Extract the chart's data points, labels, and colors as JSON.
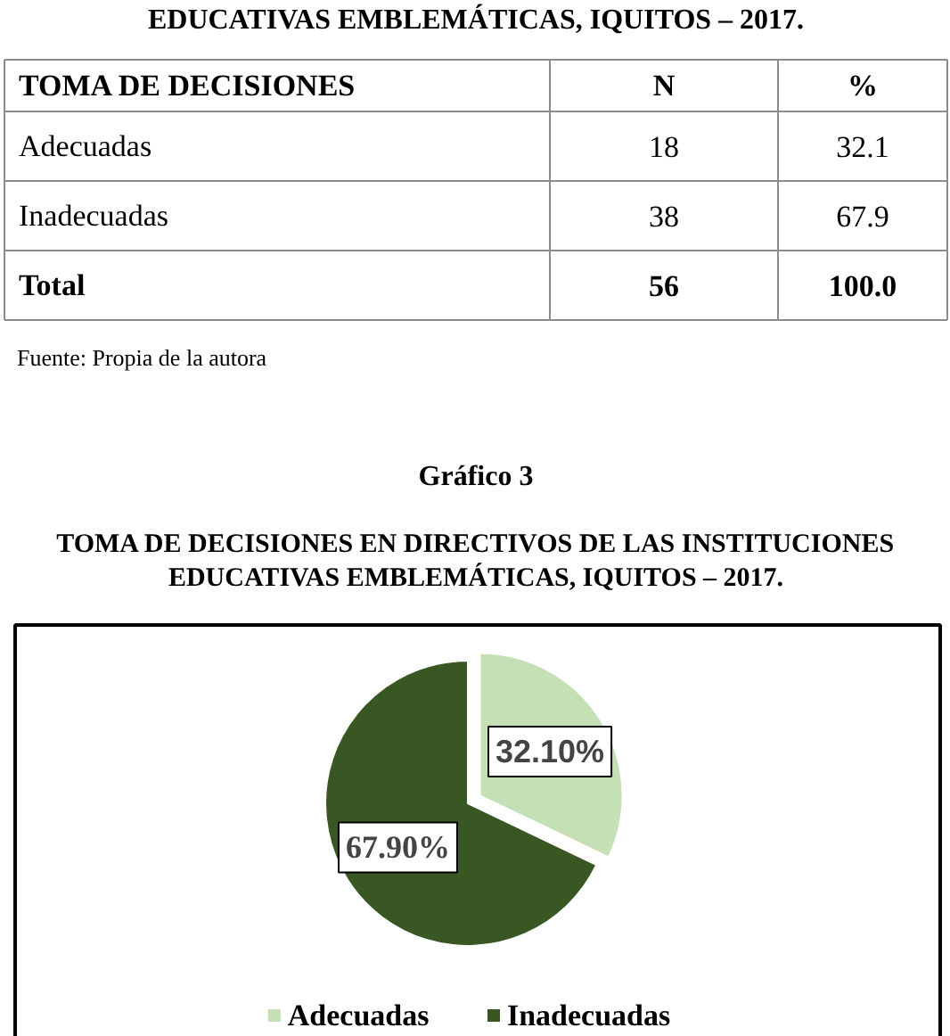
{
  "chart_data": [
    {
      "type": "other",
      "title": "EDUCATIVAS EMBLEMÁTICAS, IQUITOS – 2017.",
      "annotations": [
        "TOMA DE DECISIONES",
        "N",
        "%",
        "Adecuadas",
        "18",
        "32.1",
        "Inadecuadas",
        "38",
        "67.9",
        "Total",
        "56",
        "100.0",
        "Fuente: Propia de la autora"
      ]
    },
    {
      "type": "pie",
      "title": "Gráfico 3",
      "subtitle": "TOMA DE DECISIONES EN DIRECTIVOS DE LAS INSTITUCIONES EDUCATIVAS EMBLEMÁTICAS, IQUITOS – 2017.",
      "categories": [
        "Adecuadas",
        "Inadecuadas"
      ],
      "values": [
        32.1,
        67.9
      ],
      "colors": [
        "#c5e0b4",
        "#385723"
      ],
      "value_labels": [
        "32.10%",
        "67.90%"
      ],
      "legend": "bottom"
    }
  ]
}
